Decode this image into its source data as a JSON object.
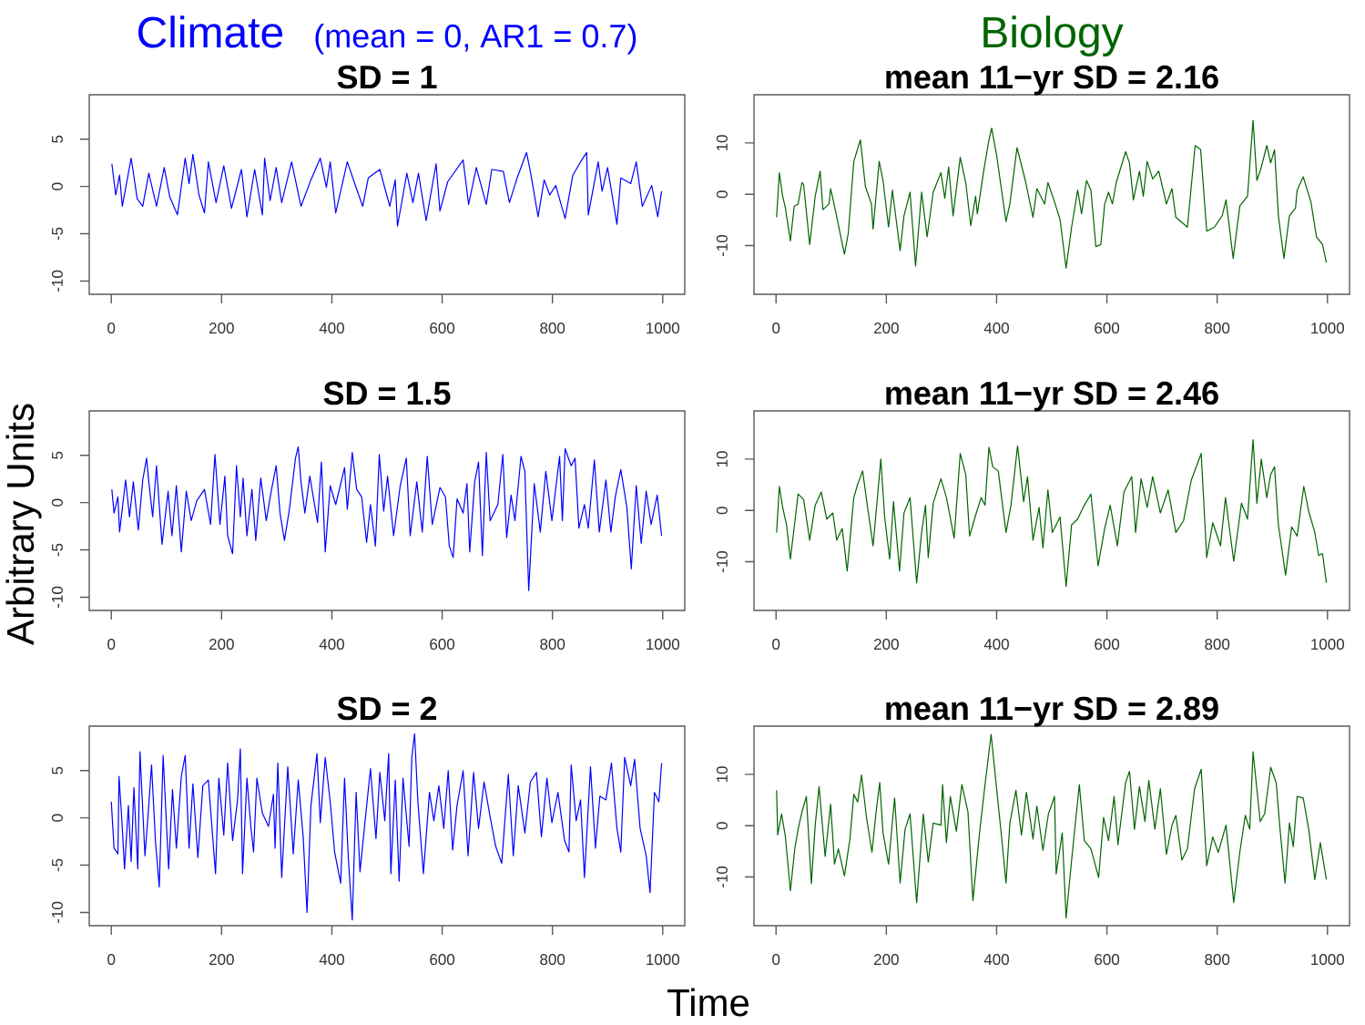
{
  "chart_data": [
    {
      "type": "line",
      "title": "Climate",
      "subtitle": "SD = 1",
      "annotations": [
        "(mean = 0, AR1 = 0.7)"
      ],
      "color": "#0000ff",
      "xlim": [
        -40,
        1040
      ],
      "ylim": [
        -11.4,
        9.7
      ],
      "xticks": [
        0,
        200,
        400,
        600,
        800,
        1000
      ],
      "yticks": [
        5,
        0,
        -5,
        -10
      ],
      "x": [
        1,
        8,
        15,
        20,
        36,
        47,
        57,
        68,
        82,
        96,
        106,
        120,
        134,
        141,
        148,
        159,
        169,
        176,
        190,
        204,
        218,
        236,
        246,
        260,
        274,
        278,
        288,
        299,
        309,
        327,
        344,
        362,
        379,
        390,
        397,
        407,
        428,
        445,
        456,
        466,
        487,
        505,
        515,
        519,
        536,
        547,
        557,
        571,
        589,
        596,
        610,
        638,
        648,
        662,
        680,
        690,
        711,
        722,
        736,
        753,
        760,
        774,
        785,
        795,
        806,
        823,
        837,
        851,
        862,
        865,
        883,
        890,
        900,
        917,
        924,
        942,
        952,
        963,
        980,
        991,
        998
      ],
      "values": [
        2.4,
        -0.9,
        1.2,
        -2.1,
        3.0,
        -1.3,
        -2.1,
        1.4,
        -2.1,
        2.0,
        -1.1,
        -3.0,
        3.0,
        0.3,
        3.4,
        -0.9,
        -2.8,
        2.6,
        -1.7,
        2.2,
        -2.3,
        1.8,
        -3.2,
        1.8,
        -3.0,
        3.0,
        -1.5,
        2.0,
        -1.7,
        2.6,
        -2.1,
        0.7,
        3.0,
        -0.1,
        2.6,
        -2.8,
        2.6,
        -0.3,
        -2.1,
        0.9,
        1.8,
        -2.1,
        0.7,
        -4.2,
        1.4,
        -1.7,
        1.4,
        -3.6,
        2.4,
        -2.6,
        0.5,
        2.8,
        -1.9,
        2.0,
        -1.9,
        1.8,
        1.6,
        -1.7,
        0.9,
        3.6,
        1.6,
        -3.2,
        0.7,
        -0.9,
        0.1,
        -3.4,
        1.2,
        2.6,
        3.6,
        -3.0,
        2.6,
        -0.5,
        2.0,
        -4.0,
        0.9,
        0.3,
        2.6,
        -2.1,
        0.1,
        -3.2,
        -0.5
      ]
    },
    {
      "type": "line",
      "title": "Biology",
      "subtitle": "mean 11−yr SD = 2.16",
      "color": "#006400",
      "xlim": [
        -40,
        1040
      ],
      "ylim": [
        -19.5,
        19.4
      ],
      "xticks": [
        0,
        200,
        400,
        600,
        800,
        1000
      ],
      "yticks": [
        10,
        0,
        -10
      ],
      "x": [
        1,
        6,
        12,
        17,
        26,
        33,
        40,
        47,
        50,
        61,
        71,
        80,
        85,
        96,
        99,
        106,
        124,
        131,
        141,
        153,
        162,
        173,
        176,
        187,
        194,
        204,
        211,
        225,
        232,
        243,
        253,
        264,
        274,
        285,
        299,
        306,
        313,
        321,
        334,
        344,
        353,
        362,
        365,
        376,
        386,
        391,
        400,
        417,
        424,
        437,
        452,
        466,
        473,
        487,
        493,
        505,
        515,
        526,
        536,
        547,
        554,
        563,
        571,
        580,
        589,
        596,
        603,
        610,
        617,
        634,
        641,
        648,
        659,
        666,
        673,
        683,
        694,
        708,
        718,
        725,
        746,
        760,
        770,
        781,
        795,
        809,
        816,
        829,
        841,
        855,
        865,
        872,
        879,
        890,
        897,
        904,
        911,
        921,
        931,
        942,
        945,
        956,
        970,
        980,
        991,
        998
      ],
      "values": [
        -4.5,
        4.2,
        -0.4,
        -2.7,
        -9.1,
        -2.3,
        -1.9,
        2.3,
        1.9,
        -9.8,
        -0.4,
        4.5,
        -3.0,
        -1.9,
        1.1,
        -2.3,
        -11.7,
        -7.6,
        6.4,
        10.6,
        1.5,
        -1.9,
        -6.8,
        6.4,
        2.7,
        -6.4,
        0.8,
        -11.0,
        -4.2,
        0.4,
        -14.0,
        0.4,
        -8.3,
        0.4,
        4.2,
        -0.8,
        5.3,
        -4.2,
        7.2,
        2.3,
        -6.1,
        -0.4,
        -3.8,
        4.2,
        10.6,
        12.9,
        7.6,
        -5.3,
        -1.9,
        9.1,
        2.7,
        -4.5,
        1.1,
        -1.9,
        2.3,
        -1.5,
        -4.9,
        -14.4,
        -6.4,
        0.8,
        -3.8,
        2.7,
        0.8,
        -10.2,
        -9.8,
        -1.9,
        0.4,
        -1.9,
        2.3,
        8.3,
        6.1,
        -1.1,
        4.5,
        -0.4,
        6.4,
        3.0,
        4.5,
        -1.9,
        1.1,
        -4.5,
        -6.4,
        9.5,
        8.7,
        -7.2,
        -6.4,
        -4.2,
        -1.1,
        -12.5,
        -2.3,
        -0.4,
        14.4,
        2.7,
        4.9,
        9.5,
        6.1,
        8.7,
        -4.2,
        -12.5,
        -4.2,
        -2.7,
        0.8,
        3.4,
        -1.5,
        -8.3,
        -9.8,
        -13.3
      ]
    },
    {
      "type": "line",
      "title": "SD = 1.5",
      "ylabel": "Arbitrary Units",
      "color": "#0000ff",
      "xlim": [
        -40,
        1040
      ],
      "ylim": [
        -11.4,
        9.7
      ],
      "xticks": [
        0,
        200,
        400,
        600,
        800,
        1000
      ],
      "yticks": [
        5,
        0,
        -5,
        -10
      ],
      "x": [
        1,
        5,
        12,
        15,
        26,
        33,
        40,
        49,
        57,
        64,
        68,
        75,
        82,
        92,
        103,
        110,
        118,
        127,
        136,
        145,
        155,
        169,
        180,
        188,
        197,
        206,
        211,
        220,
        227,
        234,
        239,
        246,
        255,
        262,
        271,
        281,
        290,
        299,
        306,
        314,
        323,
        334,
        339,
        344,
        351,
        360,
        374,
        381,
        388,
        397,
        407,
        423,
        428,
        437,
        445,
        454,
        463,
        470,
        479,
        486,
        494,
        501,
        512,
        524,
        535,
        542,
        554,
        564,
        573,
        582,
        596,
        606,
        613,
        620,
        627,
        638,
        645,
        650,
        659,
        666,
        673,
        680,
        687,
        701,
        710,
        717,
        725,
        732,
        743,
        750,
        757,
        767,
        778,
        788,
        799,
        813,
        818,
        823,
        834,
        841,
        848,
        858,
        865,
        876,
        885,
        897,
        906,
        914,
        924,
        935,
        943,
        952,
        961,
        970,
        979,
        990,
        998
      ],
      "values": [
        1.4,
        -1.1,
        0.6,
        -3.1,
        2.4,
        -1.5,
        2.2,
        -2.9,
        2.4,
        4.7,
        2.2,
        -1.5,
        3.9,
        -4.4,
        1.2,
        -3.5,
        1.8,
        -5.2,
        1.2,
        -1.9,
        0.2,
        1.4,
        -2.3,
        5.1,
        -2.3,
        2.8,
        -3.5,
        -5.4,
        3.9,
        -1.5,
        2.6,
        -3.5,
        1.4,
        -4.0,
        2.6,
        -1.9,
        1.2,
        3.9,
        -1.1,
        -4.0,
        -0.7,
        4.7,
        5.9,
        2.2,
        -1.1,
        2.8,
        -2.1,
        4.3,
        -5.2,
        1.8,
        -0.2,
        3.7,
        -0.7,
        5.3,
        1.4,
        0.6,
        -4.2,
        -0.2,
        -4.6,
        5.1,
        -0.9,
        2.8,
        -3.5,
        1.8,
        4.7,
        -3.5,
        2.2,
        -3.1,
        4.9,
        -2.3,
        1.6,
        0.6,
        -4.6,
        -5.8,
        0.4,
        -1.1,
        2.0,
        -5.2,
        2.2,
        4.3,
        -5.6,
        5.3,
        -1.9,
        -0.2,
        5.1,
        -3.7,
        0.8,
        -1.9,
        4.9,
        3.3,
        -9.3,
        2.0,
        -3.1,
        3.3,
        -1.9,
        4.9,
        -1.9,
        5.7,
        3.9,
        4.7,
        -2.7,
        -0.2,
        -2.7,
        4.5,
        -3.1,
        2.4,
        -3.1,
        0.6,
        3.5,
        -0.5,
        -7.0,
        1.8,
        -4.3,
        1.2,
        -2.3,
        0.8,
        -3.5
      ]
    },
    {
      "type": "line",
      "title": "mean 11−yr SD = 2.46",
      "color": "#006400",
      "xlim": [
        -40,
        1040
      ],
      "ylim": [
        -19.5,
        19.4
      ],
      "xticks": [
        0,
        200,
        400,
        600,
        800,
        1000
      ],
      "yticks": [
        10,
        0,
        -10
      ],
      "x": [
        1,
        6,
        12,
        19,
        26,
        33,
        40,
        50,
        61,
        71,
        82,
        92,
        103,
        110,
        120,
        129,
        141,
        148,
        157,
        166,
        176,
        190,
        197,
        206,
        213,
        224,
        232,
        243,
        255,
        264,
        271,
        276,
        285,
        299,
        309,
        323,
        334,
        344,
        351,
        362,
        372,
        379,
        386,
        393,
        403,
        417,
        426,
        438,
        449,
        456,
        466,
        477,
        484,
        493,
        501,
        515,
        526,
        536,
        547,
        557,
        571,
        584,
        596,
        606,
        619,
        631,
        645,
        652,
        662,
        673,
        683,
        697,
        711,
        725,
        739,
        753,
        771,
        781,
        792,
        806,
        815,
        830,
        844,
        855,
        865,
        872,
        880,
        890,
        897,
        904,
        911,
        924,
        935,
        945,
        957,
        966,
        977,
        984,
        991,
        998
      ],
      "values": [
        -4.3,
        4.7,
        0.6,
        -2.8,
        -9.5,
        -3.2,
        3.2,
        2.1,
        -5.8,
        1.0,
        3.6,
        -1.7,
        -0.5,
        -5.8,
        -3.5,
        -11.8,
        2.5,
        5.1,
        7.7,
        0.6,
        -6.9,
        10.0,
        -1.3,
        -9.5,
        1.7,
        -11.8,
        -0.5,
        2.5,
        -14.1,
        -4.3,
        1.0,
        -9.2,
        1.4,
        6.2,
        2.5,
        -5.4,
        11.1,
        7.0,
        -5.0,
        -0.9,
        2.5,
        1.0,
        12.3,
        8.5,
        7.7,
        -4.3,
        1.0,
        12.6,
        1.7,
        6.6,
        -5.8,
        0.6,
        -7.3,
        4.0,
        -4.3,
        -1.3,
        -14.8,
        -2.8,
        -1.7,
        0.6,
        3.2,
        -10.8,
        -3.5,
        1.0,
        -6.9,
        3.6,
        6.6,
        -4.3,
        6.2,
        0.6,
        6.6,
        -0.5,
        4.0,
        -4.3,
        -2.0,
        5.9,
        11.1,
        -9.2,
        -2.4,
        -6.9,
        2.5,
        -9.9,
        1.4,
        -1.7,
        13.8,
        1.4,
        10.0,
        2.5,
        7.0,
        8.5,
        -2.8,
        -12.6,
        -3.2,
        -5.0,
        4.7,
        -0.2,
        -4.3,
        -8.8,
        -8.4,
        -14.1
      ]
    },
    {
      "type": "line",
      "title": "SD = 2",
      "xlabel": "Time",
      "color": "#0000ff",
      "xlim": [
        -40,
        1040
      ],
      "ylim": [
        -11.4,
        9.7
      ],
      "xticks": [
        0,
        200,
        400,
        600,
        800,
        1000
      ],
      "yticks": [
        5,
        0,
        -5,
        -10
      ],
      "x": [
        0,
        5,
        12,
        14,
        19,
        24,
        31,
        36,
        41,
        48,
        52,
        61,
        66,
        73,
        80,
        87,
        94,
        104,
        111,
        118,
        127,
        134,
        141,
        148,
        157,
        166,
        176,
        189,
        195,
        204,
        211,
        220,
        229,
        234,
        238,
        246,
        253,
        258,
        264,
        274,
        285,
        294,
        297,
        302,
        309,
        320,
        330,
        339,
        348,
        355,
        362,
        373,
        379,
        388,
        397,
        405,
        416,
        423,
        430,
        437,
        444,
        451,
        461,
        470,
        480,
        487,
        496,
        503,
        507,
        515,
        522,
        529,
        540,
        545,
        550,
        556,
        566,
        577,
        585,
        594,
        603,
        611,
        619,
        627,
        638,
        647,
        657,
        666,
        676,
        687,
        697,
        708,
        720,
        729,
        738,
        750,
        760,
        771,
        780,
        790,
        799,
        810,
        822,
        830,
        834,
        843,
        851,
        858,
        869,
        878,
        886,
        897,
        907,
        917,
        924,
        931,
        942,
        949,
        959,
        970,
        977,
        985,
        993,
        998
      ],
      "values": [
        1.7,
        -3.2,
        -3.8,
        4.4,
        -0.1,
        -5.4,
        1.3,
        -4.6,
        3.2,
        -5.4,
        7.0,
        -4.0,
        -0.3,
        5.6,
        -2.4,
        -7.3,
        6.6,
        -5.4,
        3.0,
        -3.2,
        4.4,
        6.6,
        -3.2,
        3.6,
        -4.2,
        3.4,
        4.0,
        -5.9,
        4.2,
        -1.8,
        5.8,
        -2.4,
        1.9,
        7.3,
        -5.9,
        4.2,
        -0.9,
        -3.6,
        4.2,
        0.5,
        -0.9,
        2.5,
        -3.2,
        5.8,
        -6.3,
        5.4,
        -3.8,
        4.0,
        -2.0,
        -10.0,
        1.3,
        6.8,
        -0.5,
        6.4,
        1.7,
        -3.6,
        -6.9,
        4.2,
        -4.4,
        -10.8,
        2.7,
        -5.7,
        0.1,
        5.2,
        -2.2,
        4.8,
        -0.3,
        6.8,
        -5.9,
        4.0,
        -6.7,
        4.2,
        -3.0,
        6.4,
        8.9,
        1.7,
        -5.9,
        2.7,
        -0.3,
        3.4,
        -1.1,
        5.0,
        -3.4,
        1.3,
        5.0,
        -4.0,
        4.8,
        -1.1,
        3.8,
        0.1,
        -3.0,
        -4.8,
        4.6,
        -4.0,
        3.4,
        -1.6,
        3.8,
        4.8,
        -2.0,
        4.2,
        -0.5,
        2.7,
        -2.4,
        -3.6,
        5.6,
        -0.3,
        1.9,
        -6.3,
        5.4,
        -3.2,
        2.3,
        1.9,
        5.8,
        -1.1,
        -3.6,
        6.4,
        3.4,
        6.2,
        -1.1,
        -4.0,
        -7.9,
        2.7,
        1.7,
        5.8
      ]
    },
    {
      "type": "line",
      "title": "mean 11−yr SD = 2.89",
      "color": "#006400",
      "xlim": [
        -40,
        1040
      ],
      "ylim": [
        -19.5,
        19.4
      ],
      "xticks": [
        0,
        200,
        400,
        600,
        800,
        1000
      ],
      "yticks": [
        10,
        0,
        -10
      ],
      "x": [
        1,
        3,
        10,
        17,
        26,
        34,
        40,
        47,
        55,
        64,
        71,
        78,
        89,
        99,
        106,
        113,
        124,
        134,
        141,
        148,
        155,
        164,
        174,
        181,
        188,
        194,
        204,
        215,
        225,
        234,
        243,
        255,
        267,
        276,
        285,
        299,
        302,
        309,
        316,
        327,
        337,
        348,
        357,
        369,
        379,
        390,
        400,
        410,
        417,
        424,
        435,
        445,
        454,
        466,
        473,
        484,
        494,
        505,
        508,
        519,
        526,
        536,
        550,
        559,
        571,
        585,
        594,
        603,
        613,
        620,
        634,
        641,
        650,
        659,
        669,
        676,
        687,
        697,
        708,
        718,
        725,
        736,
        746,
        759,
        771,
        781,
        792,
        802,
        816,
        830,
        841,
        851,
        859,
        865,
        878,
        886,
        897,
        907,
        914,
        923,
        931,
        938,
        945,
        956,
        966,
        977,
        987,
        998
      ],
      "values": [
        6.9,
        -1.8,
        2.3,
        -2.2,
        -12.7,
        -4.5,
        -0.7,
        2.7,
        5.7,
        -11.3,
        0.1,
        7.6,
        -6.0,
        4.2,
        -7.5,
        -4.5,
        -9.8,
        -2.6,
        6.1,
        4.6,
        9.9,
        1.6,
        -5.2,
        2.3,
        8.4,
        -1.4,
        -7.5,
        5.4,
        -11.2,
        -0.7,
        2.3,
        -15.0,
        2.3,
        -7.1,
        0.5,
        0.1,
        8.0,
        -3.3,
        5.7,
        -1.1,
        8.0,
        2.7,
        -14.6,
        -1.4,
        8.0,
        17.8,
        7.2,
        -3.3,
        -11.2,
        0.5,
        6.9,
        -1.8,
        6.5,
        -2.6,
        3.8,
        -4.8,
        2.3,
        5.7,
        -9.4,
        -1.4,
        -18.0,
        -6.7,
        8.0,
        -2.9,
        -4.5,
        -10.1,
        1.6,
        -2.9,
        5.7,
        -3.7,
        8.4,
        10.6,
        -0.7,
        7.6,
        0.8,
        8.8,
        -0.7,
        7.2,
        -5.6,
        0.1,
        2.0,
        -6.7,
        -4.5,
        7.2,
        11.0,
        -7.8,
        -2.2,
        -5.2,
        0.1,
        -15.0,
        -5.2,
        2.0,
        -0.7,
        14.4,
        0.8,
        2.3,
        11.4,
        8.4,
        -0.7,
        -11.2,
        0.5,
        -4.1,
        5.7,
        5.4,
        -0.7,
        -10.5,
        -3.3,
        -10.5
      ]
    }
  ]
}
